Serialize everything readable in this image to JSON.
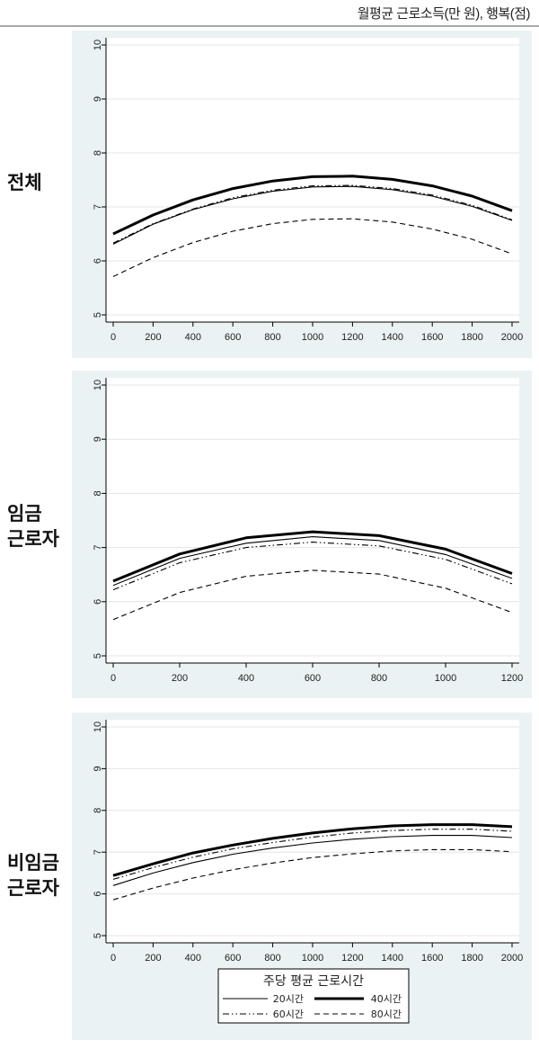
{
  "header": {
    "unit_caption": "월평균 근로소득(만 원), 행복(점)"
  },
  "legend": {
    "title": "주당 평균 근로시간",
    "entries": [
      {
        "label": "20시간",
        "style": "thin-solid"
      },
      {
        "label": "40시간",
        "style": "thick-solid"
      },
      {
        "label": "60시간",
        "style": "dash-dot"
      },
      {
        "label": "80시간",
        "style": "dashed"
      }
    ]
  },
  "colors": {
    "panel_bg": "#eaf2f3",
    "plot_bg": "#ffffff",
    "line": "#000000",
    "grid": "#e4e4e4"
  },
  "chart_data": [
    {
      "type": "line",
      "row_label": [
        "전체"
      ],
      "xlim": [
        0,
        2000
      ],
      "ylim": [
        5,
        10
      ],
      "xticks": [
        0,
        200,
        400,
        600,
        800,
        1000,
        1200,
        1400,
        1600,
        1800,
        2000
      ],
      "yticks": [
        5,
        6,
        7,
        8,
        9,
        10
      ],
      "grid": true,
      "x": [
        0,
        200,
        400,
        600,
        800,
        1000,
        1200,
        1400,
        1600,
        1800,
        2000
      ],
      "series": [
        {
          "name": "20시간",
          "values": [
            6.31,
            6.68,
            6.95,
            7.15,
            7.29,
            7.37,
            7.38,
            7.32,
            7.2,
            7.01,
            6.75
          ]
        },
        {
          "name": "40시간",
          "values": [
            6.5,
            6.85,
            7.13,
            7.34,
            7.48,
            7.56,
            7.57,
            7.51,
            7.39,
            7.2,
            6.93
          ]
        },
        {
          "name": "60시간",
          "values": [
            6.33,
            6.69,
            6.96,
            7.17,
            7.31,
            7.39,
            7.4,
            7.34,
            7.22,
            7.03,
            6.76
          ]
        },
        {
          "name": "80시간",
          "values": [
            5.71,
            6.06,
            6.34,
            6.55,
            6.69,
            6.77,
            6.78,
            6.72,
            6.59,
            6.4,
            6.13
          ]
        }
      ]
    },
    {
      "type": "line",
      "row_label": [
        "임금",
        "근로자"
      ],
      "xlim": [
        0,
        1200
      ],
      "ylim": [
        5,
        10
      ],
      "xticks": [
        0,
        200,
        400,
        600,
        800,
        1000,
        1200
      ],
      "yticks": [
        5,
        6,
        7,
        8,
        9,
        10
      ],
      "grid": true,
      "x": [
        0,
        200,
        400,
        600,
        800,
        1000,
        1200
      ],
      "series": [
        {
          "name": "20시간",
          "values": [
            6.3,
            6.8,
            7.08,
            7.2,
            7.13,
            6.87,
            6.43
          ]
        },
        {
          "name": "40시간",
          "values": [
            6.38,
            6.88,
            7.18,
            7.29,
            7.22,
            6.97,
            6.52
          ]
        },
        {
          "name": "60시간",
          "values": [
            6.22,
            6.72,
            7.0,
            7.1,
            7.03,
            6.78,
            6.33
          ]
        },
        {
          "name": "80시간",
          "values": [
            5.67,
            6.17,
            6.47,
            6.58,
            6.51,
            6.25,
            5.8
          ]
        }
      ]
    },
    {
      "type": "line",
      "row_label": [
        "비임금",
        "근로자"
      ],
      "xlim": [
        0,
        2000
      ],
      "ylim": [
        5,
        10
      ],
      "xticks": [
        0,
        200,
        400,
        600,
        800,
        1000,
        1200,
        1400,
        1600,
        1800,
        2000
      ],
      "yticks": [
        5,
        6,
        7,
        8,
        9,
        10
      ],
      "grid": true,
      "x": [
        0,
        200,
        400,
        600,
        800,
        1000,
        1200,
        1400,
        1600,
        1800,
        2000
      ],
      "series": [
        {
          "name": "20시간",
          "values": [
            6.2,
            6.5,
            6.75,
            6.95,
            7.1,
            7.22,
            7.31,
            7.37,
            7.4,
            7.4,
            7.35
          ]
        },
        {
          "name": "40시간",
          "values": [
            6.44,
            6.72,
            6.98,
            7.17,
            7.33,
            7.46,
            7.56,
            7.63,
            7.66,
            7.66,
            7.61
          ]
        },
        {
          "name": "60시간",
          "values": [
            6.35,
            6.63,
            6.88,
            7.08,
            7.23,
            7.36,
            7.46,
            7.52,
            7.55,
            7.55,
            7.5
          ]
        },
        {
          "name": "80시간",
          "values": [
            5.86,
            6.14,
            6.38,
            6.58,
            6.74,
            6.87,
            6.96,
            7.03,
            7.06,
            7.06,
            7.01
          ]
        }
      ]
    }
  ]
}
